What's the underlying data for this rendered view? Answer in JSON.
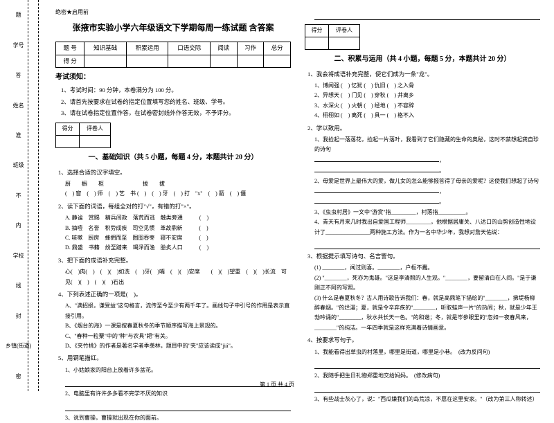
{
  "sidebar": {
    "l1": "乡镇(街道)",
    "l2": "学校",
    "l3": "班级",
    "l4": "姓名",
    "l5": "学号",
    "seal": "密",
    "feng": "封",
    "xian": "线",
    "nei": "内",
    "bu": "不",
    "zhun": "准",
    "da": "答",
    "ti": "题"
  },
  "header": {
    "secret": "绝密★启用前",
    "title": "张掖市实验小学六年级语文下学期每周一练试题 含答案"
  },
  "score_table": {
    "h1": "题 号",
    "h2": "得 分",
    "c1": "知识基础",
    "c2": "积累运用",
    "c3": "口语交际",
    "c4": "阅读",
    "c5": "习作",
    "c6": "总分"
  },
  "notice": {
    "head": "考试须知：",
    "n1": "1、考试时间：90 分钟，本卷满分为 100 分。",
    "n2": "2、请首先按要求在试卷的指定位置填写您的姓名、班级、学号。",
    "n3": "3、请在试卷指定位置作答，在试卷密封线外作答无效，不予评分。"
  },
  "eval": {
    "c1": "得分",
    "c2": "评卷人"
  },
  "sec1": {
    "head": "一、基础知识（共 5 小题，每题 4 分，本题共计 20 分）",
    "q1": "1、选择合适的汉字填空。",
    "q1r1": "厨　　橱　　柜　　　　　　　拨　　拔",
    "q1r2": "(　) 窗　(　) 师　(　) 艺　书 (　)　(　) 牙　(　) 打　\"x\"　(　) 箭　(　) 僵",
    "q2": "2、读下面的词语，每组全对的打\"√\"，有错的打\"×\"。",
    "q2a": "A. 静谧　赏赐　精兵间政　落荒而逃　触类旁通　　　(　)",
    "q2b": "B. 抽噎　名誉　积劳成疾　司空见惯　革故鼎新　　　(　)",
    "q2c": "C. 咳嗽　厨房　蜂拥而至　囫囵吞枣　寝不安席　　　(　)",
    "q2d": "D. 鼎盛　书籍　纷至踏来　竭泽而渔　脍炙人口　　　(　)",
    "q3": "3、把下面的成语补充完整。",
    "q3r": "心(　)肉(　)　(　)(　)如洗　(　)牙(　)嘴　(　)(　)安席　　(　)(　)望重　(　)(　)长流　可见(　)(　)　(　)(　)石出",
    "q4": "4、下列表述正确的一项是(　)。",
    "q4a": "A、\"满招损，谦受益\"这句格言，流传至今至少有两千年了。画线句子中引号的作用是表示直接引用。",
    "q4b": "B、《烟台的海》一课是按春夏秋冬的季节顺序描写海上景观的。",
    "q4c": "C、\"春种一粒粟\"中的\"种\"与农具\"耙\"有关。",
    "q4d": "D、《夹竹桃》的作者是著名学者季羡林，题目中的\"夹\"应该读成\"jiá\"。",
    "q5": "5、用钢笔描红。",
    "q5r": "1、小姑娘家的阳台上放着许多盆花。",
    "q5r2": "2、电脑里有许许多多看不完学不厌的知识",
    "q5r3": "3、说到曹操，曹操就出现在你的面前。"
  },
  "sec2": {
    "head": "二、积累与运用（共 4 小题，每题 5 分，本题共计 20 分）",
    "q1": "1、我会将成语补充完整，使它们成为一条\"龙\"。",
    "q1a": "1、博闻强 (　) 忆犹 (　) 仇旧 (　) 之入骨",
    "q1b": "2、异想天 (　) 门见 (　) 穿秋 (　) 井离乡",
    "q1c": "3、水深火 (　) 火朝 (　) 经地 (　) 不容辞",
    "q1d": "4、栩栩如 (　) 离死 (　) 具一 (　) 格不入",
    "q2": "2、学以致用。",
    "q2a": "1、我捡起一落落花，捡起一片落叶，我看到了它们隐藏的生命的奥秘，这时不禁想起龚自珍的诗句",
    "q2b": "2、母爱是世界上最伟大的爱，做儿女的怎么能够报答得了母亲的爱呢？这使我们想起了诗句",
    "q2c": "3、《虫虫村居》一文中\"游赏\"指_________，村落指__________。",
    "q2d": "4、青天有月来几时我出自爱国工程师_________，他根据居庸关、八达口的山势创造性地设计了________________两种施工方法。作为一名中华少年，我想对詹天佑说：",
    "q3": "3、根据提示填写诗句、名言警句。",
    "q3a": "(1) ________，闻过则喜。________，户枢不蠹。",
    "q3b": "(2) \"________，死亦为鬼雄。\"这是李清照的人生观。\"________，要留清白在人间。\"是于谦刚正不阿的写照。",
    "q3c": "(3) 什么是春夏秋冬？古人用诗歌告诉我们：春，就是高鼎笔下描绘的\"________，拂堤杨柳醉春烟。\"的烂漫；夏，就是令辛弃疾的\"________，听取蛙声一片\"的热闹；秋，就是少年王勃吟诵的\"________，秋水共长天一色。\"的和谐；冬，就是岑参眼里的\"忽如一夜春风来，________\"的纯洁。一年四季就是这样充满着诗情画意。",
    "q4": "4、按要求写句子。",
    "q4a": "1、我能看得出草虫的村落里，哪里是街道，哪里是小巷。　(改为反问句)",
    "q4b": "2、我随手把生日礼物郑重地交给妈妈。　(修改病句)",
    "q4c": "3、有些战士灰心了，说：\"西瓜嫌我们的岛荒凉，不愿在这里安家。\"（改为第三人称转述）"
  },
  "footer": "第 1 页 共 4 页"
}
